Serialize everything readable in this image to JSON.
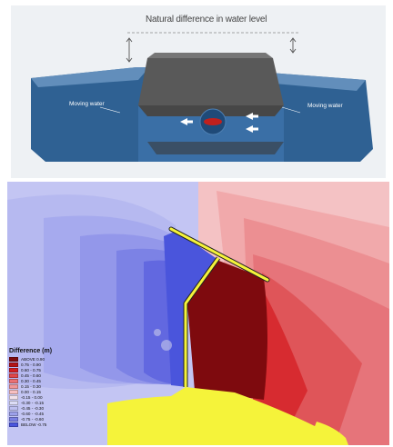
{
  "top": {
    "caption": "Natural difference in water level",
    "left_label": "Moving water",
    "right_label": "Moving water",
    "colors": {
      "water": "#2c5d8f",
      "dam": "#575757",
      "turbine": "#c0201d"
    }
  },
  "map": {
    "legend": {
      "title": "Difference (m)",
      "entries": [
        {
          "label": "ABOVE   0.90",
          "color": "#7e0a0e"
        },
        {
          "label": "0.75  -  0.90",
          "color": "#b31317"
        },
        {
          "label": "0.60  -  0.75",
          "color": "#d21e23"
        },
        {
          "label": "0.45  -  0.60",
          "color": "#e0474b"
        },
        {
          "label": "0.30  -  0.45",
          "color": "#ea7074"
        },
        {
          "label": "0.15  -  0.30",
          "color": "#f19698"
        },
        {
          "label": "0.00  -  0.15",
          "color": "#f7bfc1"
        },
        {
          "label": "-0.15  -  0.00",
          "color": "#f2e2ea"
        },
        {
          "label": "-0.30  -  -0.15",
          "color": "#dcdcf6"
        },
        {
          "label": "-0.45  -  -0.30",
          "color": "#bdbff0"
        },
        {
          "label": "-0.60  -  -0.45",
          "color": "#9ca0ea"
        },
        {
          "label": "-0.75  -  -0.60",
          "color": "#7a7fe3"
        },
        {
          "label": "BELOW  -0.75",
          "color": "#4a55dc"
        }
      ]
    },
    "colors": {
      "land": "#f5f33a",
      "dam_line": "#f5f33a"
    }
  }
}
